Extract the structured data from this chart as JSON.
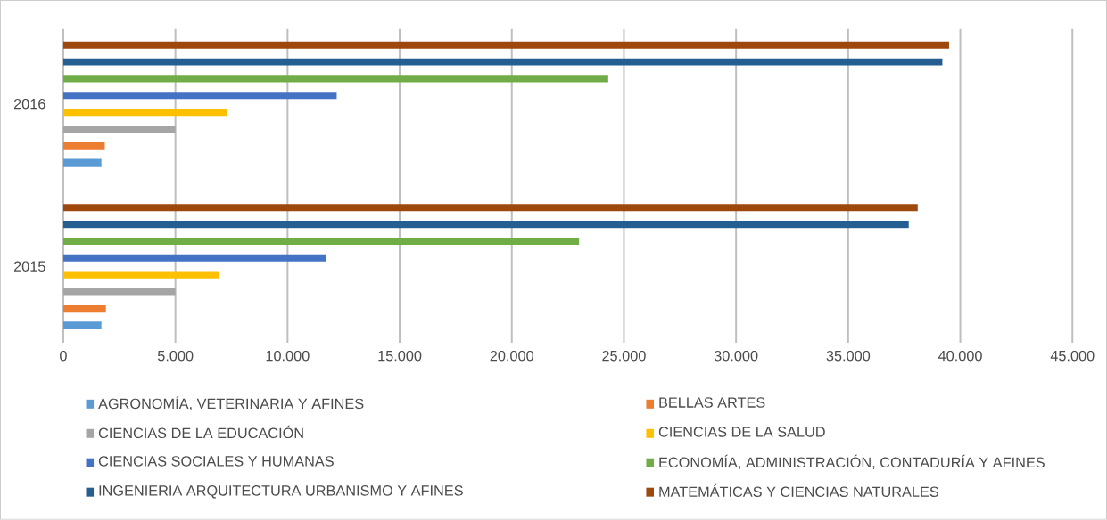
{
  "chart_data": {
    "type": "bar",
    "orientation": "horizontal",
    "categories": [
      "2016",
      "2015"
    ],
    "series": [
      {
        "name": "AGRONOMÍA, VETERINARIA Y AFINES",
        "color": "#5b9bd5",
        "values": [
          1700,
          1700
        ]
      },
      {
        "name": "BELLAS ARTES",
        "color": "#ed7d31",
        "values": [
          1850,
          1900
        ]
      },
      {
        "name": "CIENCIAS DE LA EDUCACIÓN",
        "color": "#a5a5a5",
        "values": [
          5000,
          5000
        ]
      },
      {
        "name": "CIENCIAS DE LA SALUD",
        "color": "#ffc000",
        "values": [
          7300,
          6950
        ]
      },
      {
        "name": "CIENCIAS SOCIALES Y HUMANAS",
        "color": "#4472c4",
        "values": [
          12200,
          11700
        ]
      },
      {
        "name": "ECONOMÍA, ADMINISTRACIÓN, CONTADURÍA Y AFINES",
        "color": "#70ad47",
        "values": [
          24300,
          23000
        ]
      },
      {
        "name": "INGENIERIA ARQUITECTURA URBANISMO Y AFINES",
        "color": "#255e91",
        "values": [
          39200,
          37700
        ]
      },
      {
        "name": "MATEMÁTICAS Y CIENCIAS NATURALES",
        "color": "#9e480e",
        "values": [
          39500,
          38100
        ]
      }
    ],
    "xlim": [
      0,
      45000
    ],
    "xticks": [
      0,
      {
        "value": 5000,
        "label": "5.000"
      },
      {
        "value": 10000,
        "label": "10.000"
      },
      {
        "value": 15000,
        "label": "15.000"
      },
      {
        "value": 20000,
        "label": "20.000"
      },
      {
        "value": 25000,
        "label": "25.000"
      },
      {
        "value": 30000,
        "label": "30.000"
      },
      {
        "value": 35000,
        "label": "35.000"
      },
      {
        "value": 40000,
        "label": "40.000"
      },
      {
        "value": 45000,
        "label": "45.000"
      }
    ],
    "grid": "x",
    "legend": "bottom"
  }
}
